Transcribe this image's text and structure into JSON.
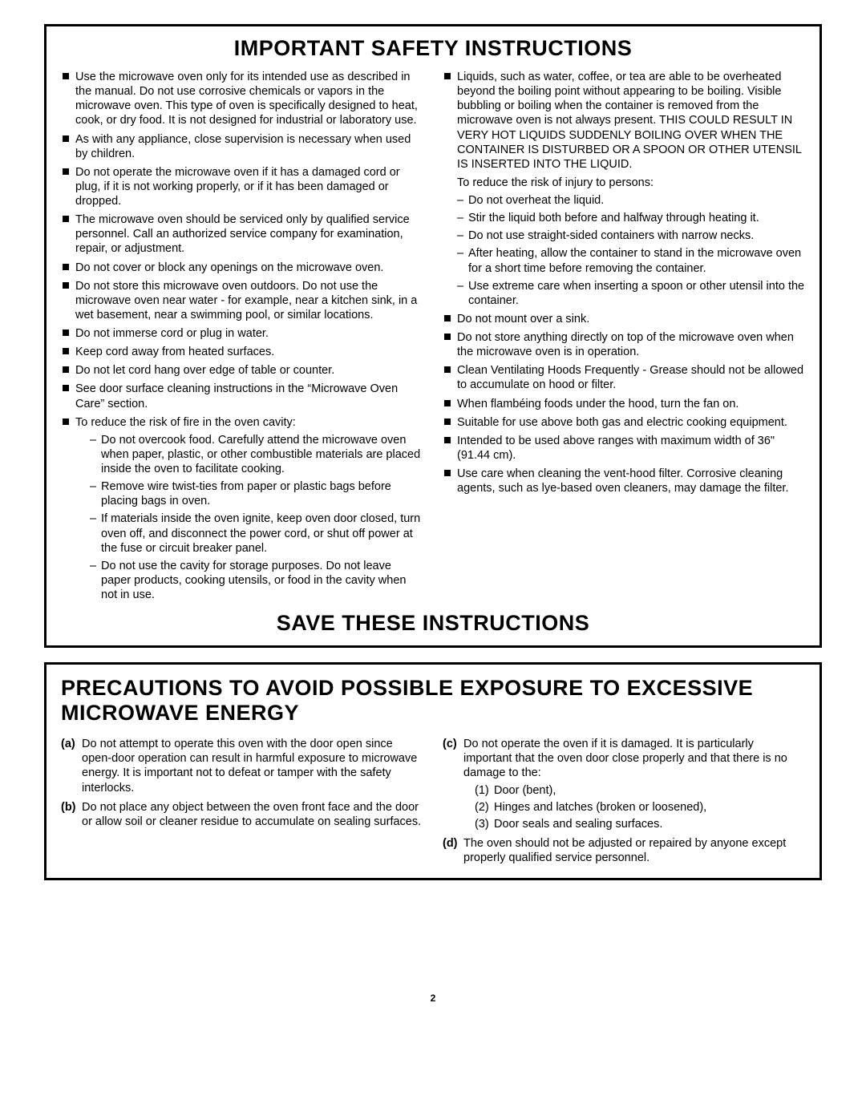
{
  "page_number": "2",
  "box1": {
    "title": "IMPORTANT SAFETY INSTRUCTIONS",
    "footer": "SAVE THESE INSTRUCTIONS",
    "left_items": [
      "Use the microwave oven only for its intended use as described in the manual. Do not use corrosive chemicals or vapors in the microwave oven. This type of oven is specifically designed to heat, cook, or dry food. It is not designed for industrial or laboratory use.",
      "As with any appliance, close supervision is necessary when used by children.",
      "Do not operate the microwave oven if it has a damaged cord or plug, if it is not working properly, or if it has been damaged or dropped.",
      "The microwave oven should be serviced only by qualified service personnel. Call an authorized service company for examination, repair, or adjustment.",
      "Do not cover or block any openings on the microwave oven.",
      "Do not store this microwave oven outdoors. Do not use the microwave oven near water - for example, near a kitchen sink, in a wet basement, near a swimming pool, or similar locations.",
      "Do not immerse cord or plug in water.",
      "Keep cord away from heated surfaces.",
      "Do not let cord hang over edge of table or counter.",
      "See door surface cleaning instructions in the “Microwave Oven Care” section.",
      "To reduce the risk of fire in the oven cavity:"
    ],
    "left_fire_sub": [
      "Do not overcook food. Carefully attend the microwave oven when paper, plastic, or other combustible materials are placed inside the oven to facilitate cooking.",
      "Remove wire twist-ties from paper or plastic bags before placing bags in oven.",
      "If materials inside the oven ignite, keep oven door closed, turn oven off, and disconnect the power cord, or shut off power at the fuse or circuit breaker panel.",
      "Do not use the cavity for storage purposes. Do not leave paper products, cooking utensils, or food in the cavity when not in use."
    ],
    "right_first": "Liquids, such as water, coffee, or tea are able to be overheated beyond the boiling point without appearing to be boiling. Visible bubbling or boiling when the container is removed from the microwave oven is not always present. THIS COULD RESULT IN VERY HOT LIQUIDS SUDDENLY BOILING OVER WHEN THE CONTAINER IS DISTURBED OR A SPOON OR OTHER UTENSIL IS INSERTED INTO THE LIQUID.",
    "right_first_intro": "To reduce the risk of injury to persons:",
    "right_first_sub": [
      "Do not overheat the liquid.",
      "Stir the liquid both before and halfway through heating it.",
      "Do not use straight-sided containers with narrow necks.",
      "After heating, allow the container to stand in the microwave oven for a short time before removing the container.",
      "Use extreme care when inserting a spoon or other utensil into the container."
    ],
    "right_rest": [
      "Do not mount over a sink.",
      "Do not store anything directly on top of the microwave oven when the microwave oven is in operation.",
      "Clean Ventilating Hoods Frequently - Grease should not be allowed to accumulate on hood or filter.",
      "When flambéing foods under the hood, turn the fan on.",
      "Suitable for use above both gas and electric cooking equipment.",
      "Intended to be used above ranges with maximum width of 36\" (91.44 cm).",
      "Use care when cleaning the vent-hood filter. Corrosive cleaning agents, such as lye-based oven cleaners, may damage the filter."
    ]
  },
  "box2": {
    "title": "PRECAUTIONS TO AVOID POSSIBLE EXPOSURE TO EXCESSIVE MICROWAVE ENERGY",
    "left": {
      "a_label": "(a)",
      "a_text": "Do not attempt to operate this oven with the door open since open-door operation can result in harmful exposure to microwave energy. It is important not to defeat or tamper with the safety interlocks.",
      "b_label": "(b)",
      "b_text": "Do not place any object between the oven front face and the door or allow soil or cleaner residue to accumulate on sealing surfaces."
    },
    "right": {
      "c_label": "(c)",
      "c_text": "Do not operate the oven if it is damaged. It is particularly important that the oven door close properly and that there is no damage to the:",
      "c_items": [
        {
          "n": "(1)",
          "t": "Door (bent),"
        },
        {
          "n": "(2)",
          "t": "Hinges and latches (broken or loosened),"
        },
        {
          "n": "(3)",
          "t": "Door seals and sealing surfaces."
        }
      ],
      "d_label": "(d)",
      "d_text": "The oven should not be adjusted or repaired by anyone except properly qualified service personnel."
    }
  }
}
